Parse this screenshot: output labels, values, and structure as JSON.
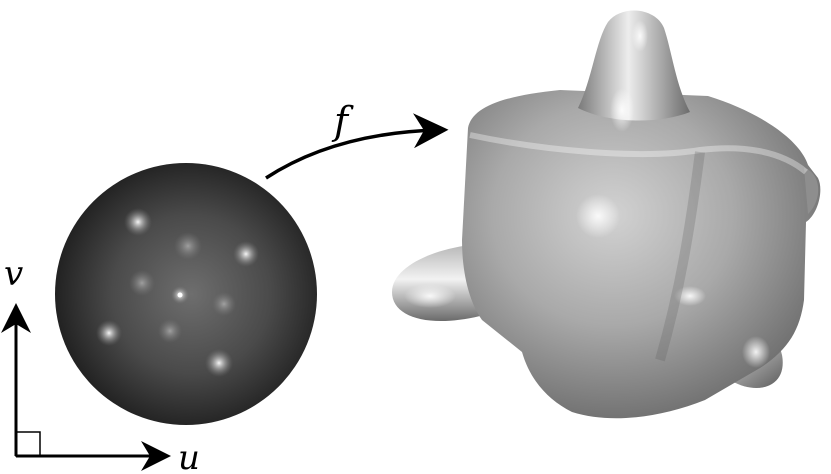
{
  "labels": {
    "map": "f",
    "axis_v": "v",
    "axis_u": "u"
  },
  "colors": {
    "background": "#ffffff",
    "ink": "#000000",
    "disk_dark": "#1e1e1e",
    "disk_mid": "#6a6a6a",
    "surface_light": "#e6e6e6",
    "surface_mid": "#a8a8a8",
    "surface_dark": "#4e4e4e"
  }
}
